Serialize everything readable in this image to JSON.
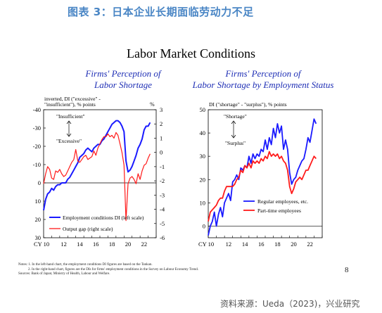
{
  "report": {
    "cn_title": "图表 3：日本企业长期面临劳动力不足",
    "slide_title": "Labor Market Conditions",
    "page_number": "8",
    "source": "资料来源：Ueda（2023)，兴业研究",
    "notes": [
      "Notes: 1. In the left-hand chart, the employment conditions DI figures are based on the Tankan.",
      "2. In the right-hand chart, figures are the DIs for firms' employment conditions in the Survey on Labour Economy Trend.",
      "Sources: Bank of Japan; Ministry of Health, Labour and Welfare."
    ]
  },
  "colors": {
    "blue": "#1a1aff",
    "red": "#ff1a1a",
    "title_blue": "#1f2fb5",
    "cn_title_blue": "#4a86c5"
  },
  "chart_data": [
    {
      "type": "line",
      "title": "Firms' Perception of Labor Shortage",
      "title_lines": [
        "Firms' Perception of",
        "Labor Shortage"
      ],
      "ylabel_left": "inverted, DI (\"excessive\" -\n\"insufficient\"), % points",
      "ylabel_left_lines": [
        "inverted, DI (\"excessive\" -",
        "\"insufficient\"), % points"
      ],
      "ylabel_right": "%",
      "x_prefix": "CY",
      "x_ticks": [
        10,
        12,
        14,
        16,
        18,
        20,
        22
      ],
      "x_range": [
        2010.0,
        2024.0
      ],
      "y_left_ticks": [
        -40,
        -30,
        -20,
        -10,
        0,
        10,
        20,
        30
      ],
      "y_left_range": [
        -40,
        30
      ],
      "y_left_inverted": true,
      "y_right_ticks": [
        3,
        2,
        1,
        0,
        -1,
        -2,
        -3,
        -4,
        -5,
        -6
      ],
      "y_right_range": [
        -6,
        3
      ],
      "annotations": [
        "\"Insufficient\"",
        "\"Excessive\""
      ],
      "legend_position": "bottom-right",
      "series": [
        {
          "name": "Employment conditions DI (left scale)",
          "axis": "left",
          "color": "blue",
          "x": [
            2010.0,
            2010.25,
            2010.5,
            2010.75,
            2011.0,
            2011.25,
            2011.5,
            2011.75,
            2012.0,
            2012.25,
            2012.5,
            2012.75,
            2013.0,
            2013.25,
            2013.5,
            2013.75,
            2014.0,
            2014.25,
            2014.5,
            2014.75,
            2015.0,
            2015.25,
            2015.5,
            2015.75,
            2016.0,
            2016.25,
            2016.5,
            2016.75,
            2017.0,
            2017.25,
            2017.5,
            2017.75,
            2018.0,
            2018.25,
            2018.5,
            2018.75,
            2019.0,
            2019.25,
            2019.5,
            2019.75,
            2020.0,
            2020.25,
            2020.5,
            2020.75,
            2021.0,
            2021.25,
            2021.5,
            2021.75,
            2022.0,
            2022.25,
            2022.5,
            2022.75,
            2023.0,
            2023.25
          ],
          "values": [
            15,
            9,
            6,
            5,
            3,
            4,
            2,
            1,
            1,
            0,
            0,
            0,
            -2,
            -3,
            -5,
            -7,
            -9,
            -11,
            -14,
            -15,
            -16,
            -18,
            -19,
            -18,
            -17,
            -19,
            -20,
            -21,
            -21,
            -23,
            -24,
            -26,
            -28,
            -30,
            -32,
            -33,
            -34,
            -34,
            -33,
            -31,
            -28,
            -12,
            -6,
            -7,
            -9,
            -12,
            -15,
            -19,
            -21,
            -24,
            -29,
            -31,
            -31,
            -33
          ]
        },
        {
          "name": "Output gap (right scale)",
          "axis": "right",
          "color": "red",
          "x": [
            2010.0,
            2010.25,
            2010.5,
            2010.75,
            2011.0,
            2011.25,
            2011.5,
            2011.75,
            2012.0,
            2012.25,
            2012.5,
            2012.75,
            2013.0,
            2013.25,
            2013.5,
            2013.75,
            2014.0,
            2014.25,
            2014.5,
            2014.75,
            2015.0,
            2015.25,
            2015.5,
            2015.75,
            2016.0,
            2016.25,
            2016.5,
            2016.75,
            2017.0,
            2017.25,
            2017.5,
            2017.75,
            2018.0,
            2018.25,
            2018.5,
            2018.75,
            2019.0,
            2019.25,
            2019.5,
            2019.75,
            2020.0,
            2020.25,
            2020.5,
            2020.75,
            2021.0,
            2021.25,
            2021.5,
            2021.75,
            2022.0,
            2022.25,
            2022.5,
            2022.75,
            2023.0,
            2023.25
          ],
          "values": [
            -2.2,
            -1.5,
            -1.0,
            -1.2,
            -1.8,
            -1.9,
            -1.3,
            -1.4,
            -1.2,
            -1.5,
            -1.7,
            -1.6,
            -1.3,
            -1.0,
            -0.7,
            -0.5,
            0.2,
            -0.6,
            -0.7,
            -0.5,
            -0.3,
            -0.2,
            -0.5,
            -0.4,
            -0.3,
            0.1,
            -0.2,
            0.3,
            0.6,
            0.9,
            1.1,
            1.1,
            1.3,
            1.1,
            1.2,
            1.0,
            1.4,
            1.2,
            0.6,
            0.0,
            -0.9,
            -4.8,
            -2.2,
            -1.8,
            -1.7,
            -1.9,
            -2.2,
            -1.5,
            -1.9,
            -1.3,
            -0.9,
            -0.8,
            -0.4,
            -0.1
          ]
        }
      ]
    },
    {
      "type": "line",
      "title": "Firms' Perception of Labor Shortage by Employment Status",
      "title_lines": [
        "Firms' Perception of",
        "Labor Shortage by Employment Status"
      ],
      "ylabel": "DI (\"shortage\" - \"surplus\"), % points",
      "x_prefix": "CY",
      "x_ticks": [
        10,
        12,
        14,
        16,
        18,
        20,
        22
      ],
      "x_range": [
        2010.0,
        2024.0
      ],
      "y_ticks": [
        50,
        40,
        30,
        20,
        10,
        0
      ],
      "y_range": [
        -5,
        50
      ],
      "annotations": [
        "\"Shortage\"",
        "\"Surplus\""
      ],
      "legend_position": "bottom-right",
      "series": [
        {
          "name": "Regular employees, etc.",
          "color": "blue",
          "x": [
            2010.0,
            2010.25,
            2010.5,
            2010.75,
            2011.0,
            2011.25,
            2011.5,
            2011.75,
            2012.0,
            2012.25,
            2012.5,
            2012.75,
            2013.0,
            2013.25,
            2013.5,
            2013.75,
            2014.0,
            2014.25,
            2014.5,
            2014.75,
            2015.0,
            2015.25,
            2015.5,
            2015.75,
            2016.0,
            2016.25,
            2016.5,
            2016.75,
            2017.0,
            2017.25,
            2017.5,
            2017.75,
            2018.0,
            2018.25,
            2018.5,
            2018.75,
            2019.0,
            2019.25,
            2019.5,
            2019.75,
            2020.0,
            2020.25,
            2020.5,
            2020.75,
            2021.0,
            2021.25,
            2021.5,
            2021.75,
            2022.0,
            2022.25,
            2022.5,
            2022.75,
            2023.0,
            2023.25
          ],
          "values": [
            -4,
            0,
            2,
            6,
            0,
            5,
            8,
            4,
            10,
            12,
            14,
            11,
            19,
            20,
            22,
            20,
            25,
            24,
            26,
            25,
            30,
            27,
            31,
            29,
            31,
            30,
            33,
            32,
            37,
            33,
            38,
            35,
            42,
            38,
            44,
            40,
            43,
            33,
            37,
            33,
            23,
            18,
            20,
            21,
            24,
            26,
            28,
            29,
            33,
            38,
            36,
            41,
            46,
            44
          ]
        },
        {
          "name": "Part-time employees",
          "color": "red",
          "x": [
            2010.0,
            2010.25,
            2010.5,
            2010.75,
            2011.0,
            2011.25,
            2011.5,
            2011.75,
            2012.0,
            2012.25,
            2012.5,
            2012.75,
            2013.0,
            2013.25,
            2013.5,
            2013.75,
            2014.0,
            2014.25,
            2014.5,
            2014.75,
            2015.0,
            2015.25,
            2015.5,
            2015.75,
            2016.0,
            2016.25,
            2016.5,
            2016.75,
            2017.0,
            2017.25,
            2017.5,
            2017.75,
            2018.0,
            2018.25,
            2018.5,
            2018.75,
            2019.0,
            2019.25,
            2019.5,
            2019.75,
            2020.0,
            2020.25,
            2020.5,
            2020.75,
            2021.0,
            2021.25,
            2021.5,
            2021.75,
            2022.0,
            2022.25,
            2022.5,
            2022.75,
            2023.0,
            2023.25
          ],
          "values": [
            2,
            6,
            7,
            8,
            9,
            11,
            12,
            12,
            15,
            17,
            17,
            17,
            17,
            18,
            20,
            21,
            24,
            23,
            26,
            25,
            27,
            25,
            28,
            27,
            28,
            27,
            29,
            28,
            30,
            29,
            32,
            30,
            31,
            30,
            31,
            29,
            30,
            28,
            27,
            24,
            17,
            14,
            16,
            19,
            20,
            21,
            20,
            22,
            24,
            24,
            26,
            28,
            30,
            29
          ]
        }
      ]
    }
  ]
}
